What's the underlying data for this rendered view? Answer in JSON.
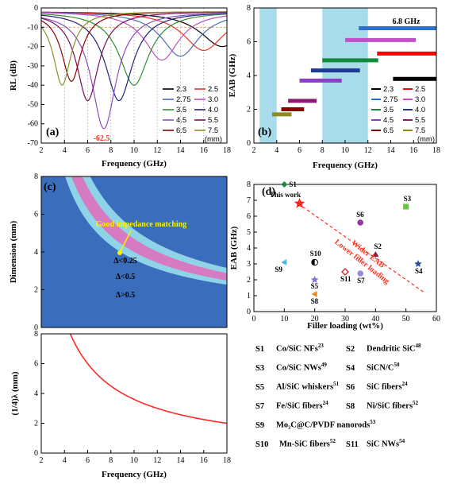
{
  "chart_data": [
    {
      "panel": "(a)",
      "type": "line",
      "xlabel": "Frequency (GHz)",
      "ylabel": "RL (dB)",
      "xlim": [
        2,
        18
      ],
      "ylim": [
        -70,
        0
      ],
      "xticks": [
        "2",
        "4",
        "6",
        "8",
        "10",
        "12",
        "14",
        "16",
        "18"
      ],
      "yticks": [
        "0",
        "-10",
        "-20",
        "-30",
        "-40",
        "-50",
        "-60",
        "-70"
      ],
      "reference_line": -10,
      "legend_unit": "(mm)",
      "annotation": "-62.5",
      "series": [
        {
          "name": "2.3",
          "color": "#000000",
          "fmin": 17.6,
          "rlmin": -20
        },
        {
          "name": "2.5",
          "color": "#e8362a",
          "fmin": 16.0,
          "rlmin": -22
        },
        {
          "name": "2.75",
          "color": "#4a6fb5",
          "fmin": 14.0,
          "rlmin": -25
        },
        {
          "name": "3.0",
          "color": "#c050c0",
          "fmin": 12.4,
          "rlmin": -27
        },
        {
          "name": "3.5",
          "color": "#2f8f2f",
          "fmin": 10.0,
          "rlmin": -40
        },
        {
          "name": "4.0",
          "color": "#22227a",
          "fmin": 8.7,
          "rlmin": -48
        },
        {
          "name": "4.5",
          "color": "#8a4fc0",
          "fmin": 7.4,
          "rlmin": -62.5
        },
        {
          "name": "5.5",
          "color": "#7a0f5a",
          "fmin": 6.0,
          "rlmin": -48
        },
        {
          "name": "6.5",
          "color": "#8b0000",
          "fmin": 4.6,
          "rlmin": -38
        },
        {
          "name": "7.5",
          "color": "#8f8f2a",
          "fmin": 3.8,
          "rlmin": -40
        }
      ]
    },
    {
      "panel": "(b)",
      "type": "bar",
      "xlabel": "Frequency (GHz)",
      "ylabel": "EAB (GHz)",
      "xlim": [
        2,
        18
      ],
      "ylim": [
        0,
        8
      ],
      "xticks": [
        "2",
        "4",
        "6",
        "8",
        "10",
        "12",
        "14",
        "16",
        "18"
      ],
      "yticks": [
        "0",
        "2",
        "4",
        "6",
        "8"
      ],
      "legend_unit": "(mm)",
      "annotation": "6.8 GHz",
      "shaded_bands": [
        [
          2.5,
          4
        ],
        [
          8,
          12
        ]
      ],
      "bands": [
        {
          "name": "2.3",
          "color": "#000000",
          "start": 14.2,
          "end": 18.0,
          "eab": 3.8
        },
        {
          "name": "2.5",
          "color": "#ff0000",
          "start": 12.8,
          "end": 18.0,
          "eab": 5.3
        },
        {
          "name": "2.75",
          "color": "#2e6fc8",
          "start": 11.2,
          "end": 18.0,
          "eab": 6.8
        },
        {
          "name": "3.0",
          "color": "#c34fc8",
          "start": 10.0,
          "end": 16.2,
          "eab": 6.1
        },
        {
          "name": "3.5",
          "color": "#108a3c",
          "start": 8.0,
          "end": 12.9,
          "eab": 4.9
        },
        {
          "name": "4.0",
          "color": "#1f3a93",
          "start": 7.0,
          "end": 11.3,
          "eab": 4.3
        },
        {
          "name": "4.5",
          "color": "#8b3fc8",
          "start": 6.0,
          "end": 9.7,
          "eab": 3.7
        },
        {
          "name": "5.5",
          "color": "#8b1a70",
          "start": 5.0,
          "end": 7.5,
          "eab": 2.5
        },
        {
          "name": "6.5",
          "color": "#8b0000",
          "start": 4.4,
          "end": 6.4,
          "eab": 2.0
        },
        {
          "name": "7.5",
          "color": "#8b8b20",
          "start": 3.6,
          "end": 5.3,
          "eab": 1.7
        }
      ]
    },
    {
      "panel": "(c)",
      "type": "heatmap",
      "xlabel": "",
      "ylabel": "Dimension (mm)",
      "xlim": [
        2,
        18
      ],
      "ylim": [
        0,
        8
      ],
      "yticks": [
        "0",
        "2",
        "4",
        "6",
        "8"
      ],
      "regions": [
        "Δ<0.25",
        "Δ<0.5",
        "Δ>0.5"
      ],
      "annotation": "Good impedance matching",
      "colors": {
        "background": "#3a6ebd",
        "outer": "#8fd3e8",
        "inner": "#d67bc2",
        "marker": "#ffee00"
      }
    },
    {
      "panel": "quarter-wave",
      "type": "line",
      "xlabel": "Frequency (GHz)",
      "ylabel": "(1/4)λ (mm)",
      "xlim": [
        2,
        18
      ],
      "ylim": [
        0,
        8
      ],
      "xticks": [
        "2",
        "4",
        "6",
        "8",
        "10",
        "12",
        "14",
        "16",
        "18"
      ],
      "yticks": [
        "0",
        "2",
        "4",
        "6",
        "8"
      ],
      "series": [
        {
          "color": "#ff2a2a",
          "formula_constant": 36
        }
      ]
    },
    {
      "panel": "(d)",
      "type": "scatter",
      "xlabel": "Filler loading (wt%)",
      "ylabel": "EAB (GHz)",
      "xlim": [
        0,
        60
      ],
      "ylim": [
        0,
        8
      ],
      "xticks": [
        "0",
        "10",
        "20",
        "30",
        "40",
        "50",
        "60"
      ],
      "yticks": [
        "0",
        "1",
        "2",
        "3",
        "4",
        "5",
        "6",
        "7",
        "8"
      ],
      "annotation_lines": [
        "Wider EAB",
        "Lower filler loading"
      ],
      "points": [
        {
          "label": "This work",
          "x": 15,
          "y": 6.8,
          "color": "#ff2020",
          "marker": "star"
        },
        {
          "label": "S1",
          "x": 10,
          "y": 8.0,
          "color": "#1a8a3a",
          "marker": "diamond"
        },
        {
          "label": "S2",
          "x": 40,
          "y": 3.6,
          "color": "#8b1a40",
          "marker": "triangle"
        },
        {
          "label": "S3",
          "x": 50,
          "y": 6.6,
          "color": "#6cc24a",
          "marker": "square"
        },
        {
          "label": "S4",
          "x": 54,
          "y": 3.0,
          "color": "#2a4fa0",
          "marker": "star"
        },
        {
          "label": "S5",
          "x": 20,
          "y": 2.0,
          "color": "#8a6fd0",
          "marker": "star"
        },
        {
          "label": "S6",
          "x": 35,
          "y": 5.6,
          "color": "#8a3aa0",
          "marker": "circle"
        },
        {
          "label": "S7",
          "x": 35,
          "y": 2.4,
          "color": "#9a8ad0",
          "marker": "circle"
        },
        {
          "label": "S8",
          "x": 20,
          "y": 1.1,
          "color": "#f08a20",
          "marker": "tri-left"
        },
        {
          "label": "S9",
          "x": 10,
          "y": 3.1,
          "color": "#50b8e0",
          "marker": "tri-left"
        },
        {
          "label": "S10",
          "x": 20,
          "y": 3.1,
          "color": "#000000",
          "marker": "half-circle"
        },
        {
          "label": "S11",
          "x": 30,
          "y": 2.5,
          "color": "#d02020",
          "marker": "diamond-open"
        }
      ]
    }
  ],
  "references": [
    {
      "id": "S1",
      "name": "Co/SiC NFs",
      "ref": "23"
    },
    {
      "id": "S2",
      "name": "Dendritic SiC",
      "ref": "48"
    },
    {
      "id": "S3",
      "name": "Co/SiC NWs",
      "ref": "49"
    },
    {
      "id": "S4",
      "name": "SiCN/C",
      "ref": "50"
    },
    {
      "id": "S5",
      "name": "Al/SiC whiskers",
      "ref": "51"
    },
    {
      "id": "S6",
      "name": "SiC fibers",
      "ref": "24"
    },
    {
      "id": "S7",
      "name": "Fe/SiC fibers",
      "ref": "24"
    },
    {
      "id": "S8",
      "name": "Ni/SiC fibers",
      "ref": "52"
    },
    {
      "id": "S9",
      "name": "Mo₂C@C/PVDF nanorods",
      "ref": "53"
    },
    {
      "id": "S10",
      "name": "Mn-SiC fibers",
      "ref": "52"
    },
    {
      "id": "S11",
      "name": "SiC NWs",
      "ref": "54"
    }
  ]
}
